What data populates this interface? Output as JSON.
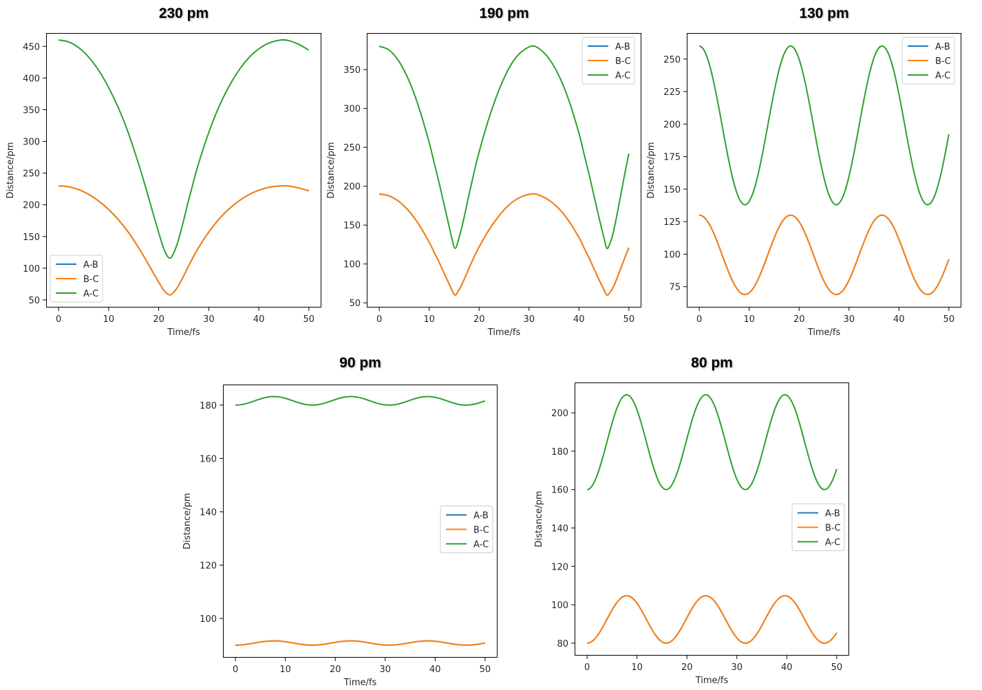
{
  "chart_data": [
    {
      "type": "line",
      "title": "230 pm",
      "xlabel": "Time/fs",
      "ylabel": "Distance/pm",
      "xlim": [
        -2.5,
        52.5
      ],
      "ylim": [
        38,
        471
      ],
      "xticks": [
        0,
        10,
        20,
        30,
        40,
        50
      ],
      "yticks": [
        50,
        100,
        150,
        200,
        250,
        300,
        350,
        400,
        450
      ],
      "legend": "lower-left",
      "grid": false,
      "x": [
        0,
        2,
        4,
        6,
        8,
        10,
        12,
        14,
        16,
        17,
        18,
        19,
        20,
        20.5,
        21,
        21.5,
        22,
        22.2,
        22.5,
        23,
        23.5,
        24,
        25,
        26,
        27,
        28,
        30,
        32,
        34,
        36,
        38,
        40,
        42,
        44.4,
        46,
        48,
        50
      ],
      "series": [
        {
          "name": "A-B",
          "color": "#1f77b4",
          "values": [
            230,
            228.5,
            224,
            216.5,
            206,
            192.5,
            176,
            156,
            132,
            119,
            105.5,
            91.5,
            78,
            71.5,
            65.5,
            61,
            58.2,
            58,
            58.5,
            62,
            67,
            73,
            88,
            104,
            119,
            133,
            157,
            177,
            193,
            206,
            216,
            223,
            227.5,
            230,
            229.5,
            226.5,
            222
          ]
        },
        {
          "name": "B-C",
          "color": "#ff7f0e",
          "values": [
            230,
            228.5,
            224,
            216.5,
            206,
            192.5,
            176,
            156,
            132,
            119,
            105.5,
            91.5,
            78,
            71.5,
            65.5,
            61,
            58.2,
            58,
            58.5,
            62,
            67,
            73,
            88,
            104,
            119,
            133,
            157,
            177,
            193,
            206,
            216,
            223,
            227.5,
            230,
            229.5,
            226.5,
            222
          ]
        },
        {
          "name": "A-C",
          "color": "#2ca02c",
          "values": [
            460,
            457,
            448,
            433,
            412,
            385,
            352,
            312,
            264,
            238,
            211,
            183,
            156,
            143,
            131,
            122,
            116.4,
            116,
            117,
            124,
            134,
            146,
            176,
            208,
            238,
            266,
            314,
            354,
            386,
            412,
            432,
            446,
            455,
            460,
            459,
            453,
            444
          ]
        }
      ]
    },
    {
      "type": "line",
      "title": "190 pm",
      "xlabel": "Time/fs",
      "ylabel": "Distance/pm",
      "xlim": [
        -2.5,
        52.5
      ],
      "ylim": [
        44,
        397
      ],
      "xticks": [
        0,
        10,
        20,
        30,
        40,
        50
      ],
      "yticks": [
        50,
        100,
        150,
        200,
        250,
        300,
        350
      ],
      "legend": "upper-right",
      "grid": false,
      "x": [
        0,
        2,
        4,
        6,
        8,
        10,
        11,
        12,
        13,
        14,
        14.5,
        15.2,
        16,
        17,
        18,
        19,
        20,
        22,
        24,
        26,
        28,
        30.4,
        32,
        34,
        36,
        38,
        40,
        41,
        42,
        43,
        44,
        45,
        45.6,
        46.3,
        47,
        48,
        49,
        50
      ],
      "series": [
        {
          "name": "A-B",
          "color": "#1f77b4",
          "values": [
            190,
            187.5,
            180,
            167.5,
            150,
            128,
            115,
            102,
            88,
            74,
            67,
            60,
            67,
            80,
            95,
            109,
            122,
            144,
            162,
            176,
            185,
            190,
            188.5,
            182,
            171,
            155,
            134,
            121,
            108,
            94,
            80,
            67,
            60,
            64,
            72,
            88,
            105,
            121
          ]
        },
        {
          "name": "B-C",
          "color": "#ff7f0e",
          "values": [
            190,
            187.5,
            180,
            167.5,
            150,
            128,
            115,
            102,
            88,
            74,
            67,
            60,
            67,
            80,
            95,
            109,
            122,
            144,
            162,
            176,
            185,
            190,
            188.5,
            182,
            171,
            155,
            134,
            121,
            108,
            94,
            80,
            67,
            60,
            64,
            72,
            88,
            105,
            121
          ]
        },
        {
          "name": "A-C",
          "color": "#2ca02c",
          "values": [
            380,
            375,
            360,
            335,
            300,
            256,
            230,
            204,
            176,
            148,
            134,
            120,
            134,
            160,
            190,
            218,
            244,
            288,
            324,
            352,
            370,
            380,
            377,
            364,
            342,
            310,
            268,
            242,
            216,
            188,
            160,
            134,
            120,
            128,
            144,
            176,
            210,
            242
          ]
        }
      ]
    },
    {
      "type": "line",
      "title": "130 pm",
      "xlabel": "Time/fs",
      "ylabel": "Distance/pm",
      "xlim": [
        -2.5,
        52.5
      ],
      "ylim": [
        59,
        270
      ],
      "xticks": [
        0,
        10,
        20,
        30,
        40,
        50
      ],
      "yticks": [
        75,
        100,
        125,
        150,
        175,
        200,
        225,
        250
      ],
      "legend": "upper-right",
      "grid": false,
      "period_fs": 18.3,
      "series": [
        {
          "name": "A-B",
          "color": "#1f77b4",
          "min": 69,
          "max": 130,
          "start_value": 130,
          "end_value": 104
        },
        {
          "name": "B-C",
          "color": "#ff7f0e",
          "min": 69,
          "max": 130,
          "start_value": 130,
          "end_value": 104
        },
        {
          "name": "A-C",
          "color": "#2ca02c",
          "min": 138,
          "max": 260,
          "start_value": 260,
          "end_value": 208
        }
      ]
    },
    {
      "type": "line",
      "title": "90 pm",
      "xlabel": "Time/fs",
      "ylabel": "Distance/pm",
      "xlim": [
        -2.5,
        52.5
      ],
      "ylim": [
        85.3,
        187.7
      ],
      "xticks": [
        0,
        10,
        20,
        30,
        40,
        50
      ],
      "yticks": [
        100,
        120,
        140,
        160,
        180
      ],
      "legend": "center-right",
      "grid": false,
      "period_fs": 15.4,
      "series": [
        {
          "name": "A-B",
          "color": "#1f77b4",
          "min": 90,
          "max": 91.6,
          "start_value": 90,
          "end_value": 90.7
        },
        {
          "name": "B-C",
          "color": "#ff7f0e",
          "min": 90,
          "max": 91.6,
          "start_value": 90,
          "end_value": 90.7
        },
        {
          "name": "A-C",
          "color": "#2ca02c",
          "min": 180,
          "max": 183.2,
          "start_value": 180,
          "end_value": 181.5
        }
      ]
    },
    {
      "type": "line",
      "title": "80 pm",
      "xlabel": "Time/fs",
      "ylabel": "Distance/pm",
      "xlim": [
        -2.5,
        52.5
      ],
      "ylim": [
        73.5,
        215.8
      ],
      "xticks": [
        0,
        10,
        20,
        30,
        40,
        50
      ],
      "yticks": [
        80,
        100,
        120,
        140,
        160,
        180,
        200
      ],
      "legend": "center-right",
      "grid": false,
      "period_fs": 15.85,
      "series": [
        {
          "name": "A-B",
          "color": "#1f77b4",
          "min": 80,
          "max": 104.7,
          "start_value": 80,
          "end_value": 86.5
        },
        {
          "name": "B-C",
          "color": "#ff7f0e",
          "min": 80,
          "max": 104.7,
          "start_value": 80,
          "end_value": 86.5
        },
        {
          "name": "A-C",
          "color": "#2ca02c",
          "min": 160,
          "max": 209.4,
          "start_value": 160,
          "end_value": 173
        }
      ]
    }
  ]
}
